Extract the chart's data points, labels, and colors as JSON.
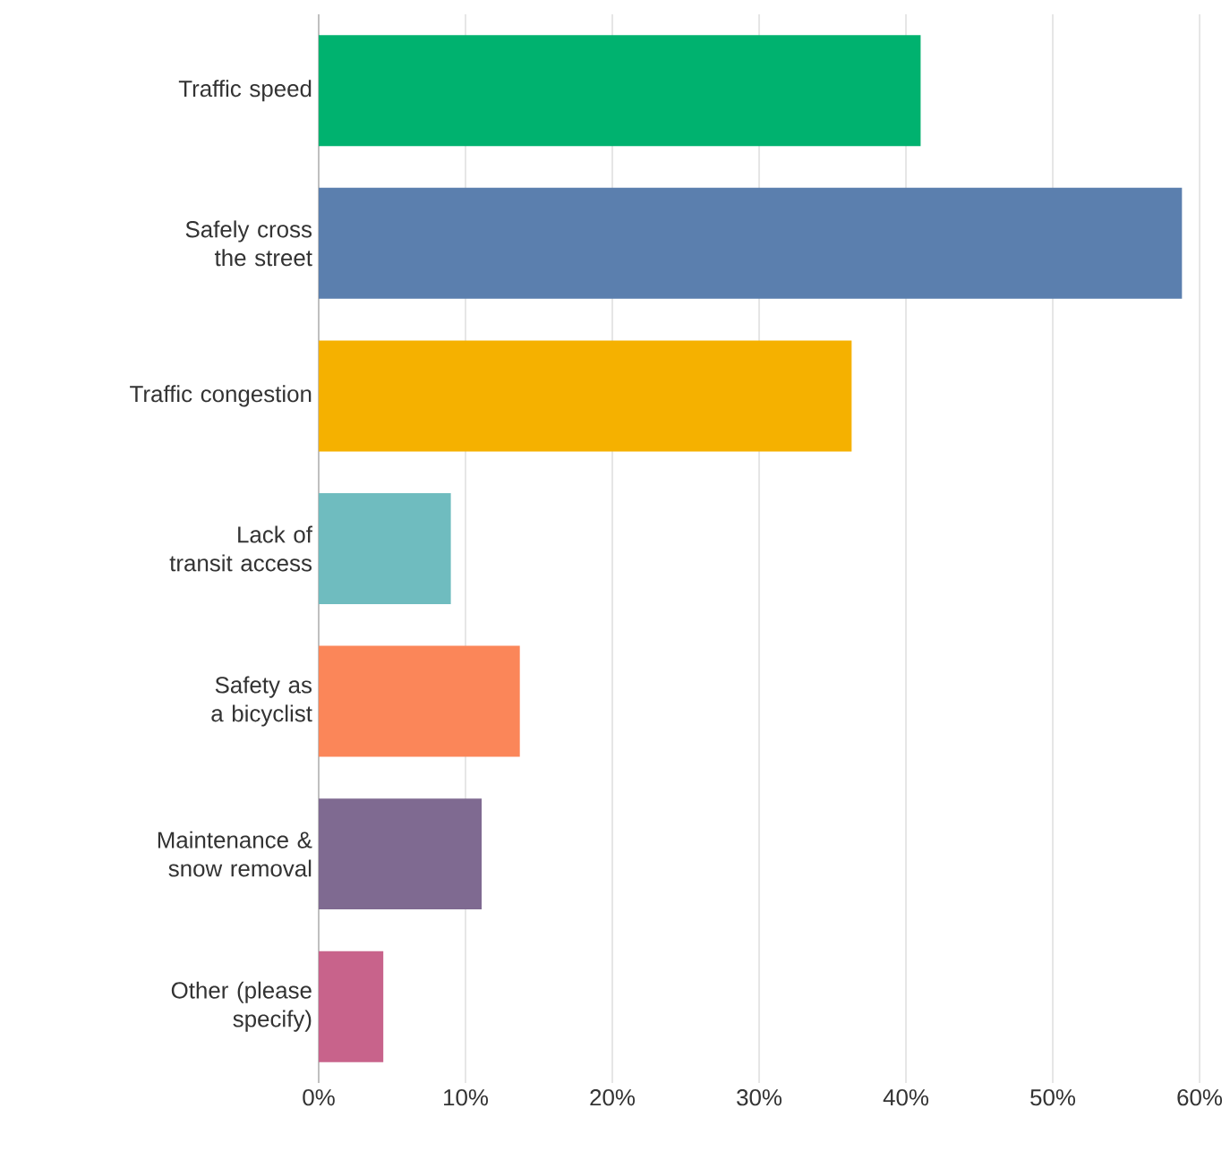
{
  "chart_data": {
    "type": "bar",
    "orientation": "horizontal",
    "categories": [
      "Traffic speed",
      "Safely cross the street",
      "Traffic congestion",
      "Lack of transit access",
      "Safety as a bicyclist",
      "Maintenance & snow removal",
      "Other (please specify)"
    ],
    "values": [
      41.0,
      58.8,
      36.3,
      9.0,
      13.7,
      11.1,
      4.4
    ],
    "colors": [
      "#00b26f",
      "#5b7fae",
      "#f5b100",
      "#6fbcbf",
      "#fb8659",
      "#7f6a91",
      "#c8638b"
    ],
    "xlim": [
      0,
      60
    ],
    "xticks": [
      {
        "value": 0,
        "label": "0%"
      },
      {
        "value": 10,
        "label": "10%"
      },
      {
        "value": 20,
        "label": "20%"
      },
      {
        "value": 30,
        "label": "30%"
      },
      {
        "value": 40,
        "label": "40%"
      },
      {
        "value": 50,
        "label": "50%"
      },
      {
        "value": 60,
        "label": "60%"
      }
    ],
    "grid": "x"
  }
}
